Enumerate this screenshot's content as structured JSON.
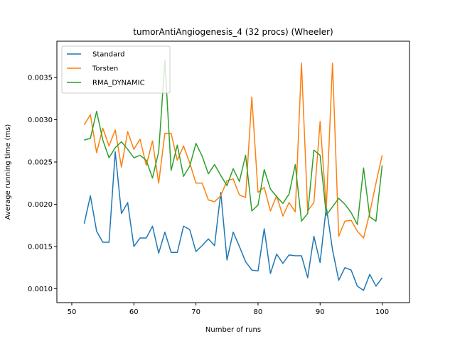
{
  "chart_data": {
    "type": "line",
    "title": "tumorAntiAngiogenesis_4 (32 procs) (Wheeler)",
    "xlabel": "Number of runs",
    "ylabel": "Average running time (ms)",
    "xlim": [
      47.6,
      104.4
    ],
    "ylim": [
      0.000835,
      0.00393
    ],
    "xticks": [
      50,
      60,
      70,
      80,
      90,
      100
    ],
    "yticks": [
      0.001,
      0.0015,
      0.002,
      0.0025,
      0.003,
      0.0035
    ],
    "ytick_labels": [
      "0.0010",
      "0.0015",
      "0.0020",
      "0.0025",
      "0.0030",
      "0.0035"
    ],
    "legend_position": "upper-left",
    "grid": false,
    "x": [
      52,
      53,
      54,
      55,
      56,
      57,
      58,
      59,
      60,
      61,
      62,
      63,
      64,
      65,
      66,
      67,
      68,
      69,
      70,
      71,
      72,
      73,
      74,
      75,
      76,
      77,
      78,
      79,
      80,
      81,
      82,
      83,
      84,
      85,
      86,
      87,
      88,
      89,
      90,
      91,
      92,
      93,
      94,
      95,
      96,
      97,
      98,
      99,
      100
    ],
    "series": [
      {
        "name": "Standard",
        "color": "#1f77b4",
        "values": [
          0.00177,
          0.0021,
          0.00168,
          0.00155,
          0.00155,
          0.00262,
          0.00189,
          0.00202,
          0.0015,
          0.0016,
          0.0016,
          0.00174,
          0.00142,
          0.00167,
          0.00143,
          0.00143,
          0.00174,
          0.0017,
          0.00144,
          0.00151,
          0.00159,
          0.00151,
          0.00214,
          0.00134,
          0.00167,
          0.0015,
          0.00132,
          0.00122,
          0.00121,
          0.00171,
          0.00118,
          0.00141,
          0.0013,
          0.0014,
          0.00139,
          0.00139,
          0.00113,
          0.00162,
          0.00131,
          0.00197,
          0.00146,
          0.0011,
          0.00125,
          0.00122,
          0.00103,
          0.00098,
          0.00117,
          0.00103,
          0.00113
        ]
      },
      {
        "name": "Torsten",
        "color": "#ff7f0e",
        "values": [
          0.00294,
          0.00306,
          0.00261,
          0.0029,
          0.00269,
          0.00288,
          0.00244,
          0.00286,
          0.00265,
          0.00277,
          0.00246,
          0.00275,
          0.00225,
          0.00284,
          0.00284,
          0.00252,
          0.00269,
          0.00249,
          0.00225,
          0.00225,
          0.00205,
          0.00203,
          0.0021,
          0.00228,
          0.0023,
          0.00211,
          0.00208,
          0.00327,
          0.00214,
          0.0022,
          0.00192,
          0.0021,
          0.00186,
          0.00202,
          0.00191,
          0.00367,
          0.00192,
          0.00202,
          0.00298,
          0.00195,
          0.00367,
          0.00162,
          0.0018,
          0.00181,
          0.00168,
          0.0016,
          0.0019,
          0.00225,
          0.00258
        ]
      },
      {
        "name": "RMA_DYNAMIC",
        "color": "#2ca02c",
        "values": [
          0.00276,
          0.00278,
          0.0031,
          0.00276,
          0.00255,
          0.00267,
          0.00274,
          0.00265,
          0.00255,
          0.00258,
          0.00252,
          0.00231,
          0.00262,
          0.0037,
          0.0024,
          0.0027,
          0.00233,
          0.00245,
          0.00272,
          0.00257,
          0.00236,
          0.00247,
          0.00234,
          0.00222,
          0.00242,
          0.00227,
          0.00258,
          0.00192,
          0.00199,
          0.00241,
          0.00218,
          0.00209,
          0.00201,
          0.00212,
          0.00247,
          0.0018,
          0.00189,
          0.00264,
          0.00258,
          0.00187,
          0.00197,
          0.00207,
          0.002,
          0.0019,
          0.00176,
          0.00243,
          0.00185,
          0.0018,
          0.00246
        ]
      }
    ]
  }
}
